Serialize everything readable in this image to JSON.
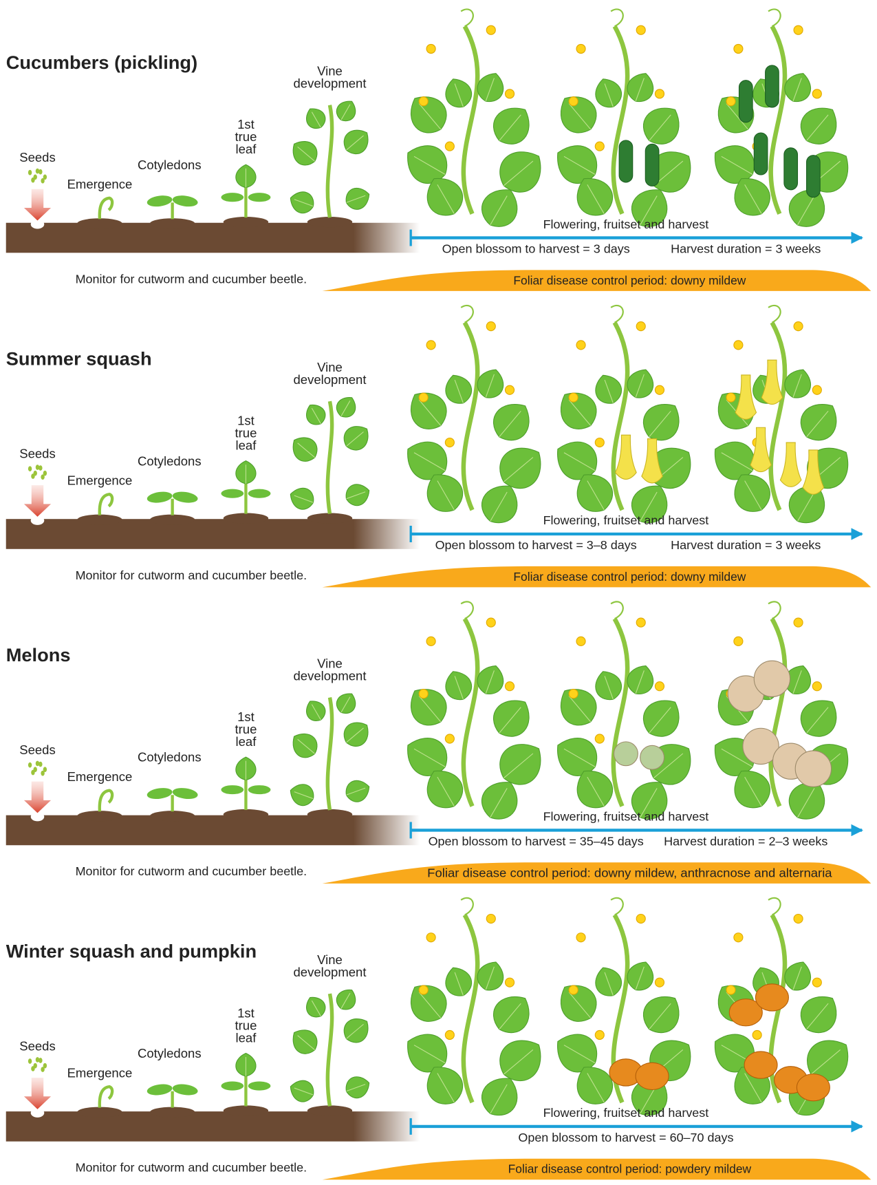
{
  "panels": [
    {
      "title": "Cucumbers (pickling)",
      "seeds": "Seeds",
      "emergence": "Emergence",
      "cotyledons": "Cotyledons",
      "true_leaf": [
        "1st",
        "true",
        "leaf"
      ],
      "vine": [
        "Vine",
        "development"
      ],
      "flowering": "Flowering, fruitset and harvest",
      "timing": [
        "Open blossom to harvest = 3 days",
        "Harvest duration = 3 weeks"
      ],
      "monitor": "Monitor for cutworm and cucumber beetle.",
      "disease": "Foliar disease control period: downy mildew"
    },
    {
      "title": "Summer squash",
      "seeds": "Seeds",
      "emergence": "Emergence",
      "cotyledons": "Cotyledons",
      "true_leaf": [
        "1st",
        "true",
        "leaf"
      ],
      "vine": [
        "Vine",
        "development"
      ],
      "flowering": "Flowering, fruitset and harvest",
      "timing": [
        "Open blossom to harvest = 3–8 days",
        "Harvest duration = 3 weeks"
      ],
      "monitor": "Monitor for cutworm and cucumber beetle.",
      "disease": "Foliar disease control period: downy mildew"
    },
    {
      "title": "Melons",
      "seeds": "Seeds",
      "emergence": "Emergence",
      "cotyledons": "Cotyledons",
      "true_leaf": [
        "1st",
        "true",
        "leaf"
      ],
      "vine": [
        "Vine",
        "development"
      ],
      "flowering": "Flowering, fruitset and harvest",
      "timing": [
        "Open blossom to harvest = 35–45 days",
        "Harvest duration = 2–3 weeks"
      ],
      "monitor": "Monitor for cutworm and cucumber beetle.",
      "disease": "Foliar disease control period: downy mildew, anthracnose and alternaria"
    },
    {
      "title": "Winter squash and pumpkin",
      "seeds": "Seeds",
      "emergence": "Emergence",
      "cotyledons": "Cotyledons",
      "true_leaf": [
        "1st",
        "true",
        "leaf"
      ],
      "vine": [
        "Vine",
        "development"
      ],
      "flowering": "Flowering, fruitset and harvest",
      "timing": [
        "Open blossom to harvest = 60–70 days"
      ],
      "monitor": "Monitor for cutworm and cucumber beetle.",
      "disease": "Foliar disease control period: powdery mildew"
    }
  ]
}
